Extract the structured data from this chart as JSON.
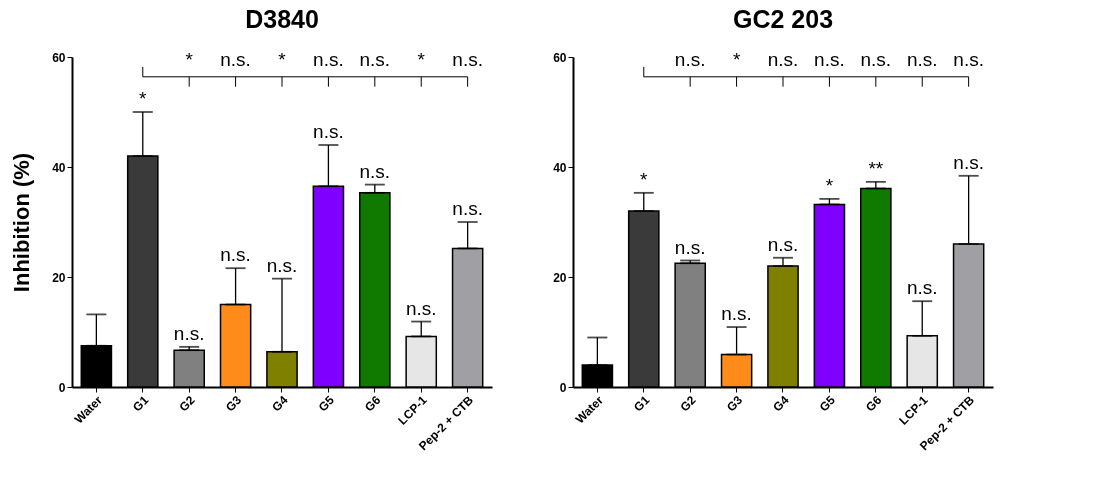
{
  "chart_data": [
    {
      "type": "bar",
      "title": "D3840",
      "ylabel": "Inhibition (%)",
      "categories": [
        "Water",
        "G1",
        "G2",
        "G3",
        "G4",
        "G5",
        "G6",
        "LCP-1",
        "Pep-2 + CTB"
      ],
      "values": [
        7.5,
        42,
        6.7,
        15,
        6.4,
        36.5,
        35.3,
        9.2,
        25.2
      ],
      "errors": [
        [
          7.5,
          13.2
        ],
        [
          42,
          50
        ],
        [
          6.7,
          7.3
        ],
        [
          15,
          21.6
        ],
        [
          6.4,
          19.7
        ],
        [
          36.5,
          44
        ],
        [
          35.3,
          36.8
        ],
        [
          9.2,
          11.9
        ],
        [
          25.2,
          30
        ]
      ],
      "colors": [
        "#000000",
        "#3a3a3a",
        "#808080",
        "#ff8c1a",
        "#7f7f00",
        "#8000ff",
        "#107a00",
        "#e6e6e6",
        "#a0a0a4"
      ],
      "ylim": [
        0,
        60
      ],
      "yticks": [
        0,
        20,
        40,
        60
      ],
      "grid": false,
      "annotations": [
        {
          "text": "*",
          "x": "G1",
          "y": 50.5
        },
        {
          "text": "n.s.",
          "x": "G2",
          "y": 7.8
        },
        {
          "text": "n.s.",
          "x": "G3",
          "y": 22.1
        },
        {
          "text": "n.s.",
          "x": "G4",
          "y": 20.2
        },
        {
          "text": "n.s.",
          "x": "G5",
          "y": 44.5
        },
        {
          "text": "n.s.",
          "x": "G6",
          "y": 37.3
        },
        {
          "text": "n.s.",
          "x": "LCP-1",
          "y": 12.4
        },
        {
          "text": "n.s.",
          "x": "Pep-2 + CTB",
          "y": 30.5
        },
        "*",
        "n.s.",
        "*",
        "n.s.",
        "n.s.",
        "*",
        "n.s."
      ]
    },
    {
      "type": "bar",
      "title": "GC2 203",
      "categories": [
        "Water",
        "G1",
        "G2",
        "G3",
        "G4",
        "G5",
        "G6",
        "LCP-1",
        "Pep-2 + CTB"
      ],
      "values": [
        4.0,
        32.0,
        22.5,
        5.9,
        22.0,
        33.2,
        36.1,
        9.3,
        26.0
      ],
      "errors": [
        [
          4.0,
          9.0
        ],
        [
          32.0,
          35.3
        ],
        [
          22.5,
          23.0
        ],
        [
          5.9,
          10.9
        ],
        [
          22.0,
          23.5
        ],
        [
          33.2,
          34.2
        ],
        [
          36.1,
          37.3
        ],
        [
          9.3,
          15.6
        ],
        [
          26.0,
          38.4
        ]
      ],
      "colors": [
        "#000000",
        "#3a3a3a",
        "#808080",
        "#ff8c1a",
        "#7f7f00",
        "#8000ff",
        "#107a00",
        "#e6e6e6",
        "#a0a0a4"
      ],
      "ylim": [
        0,
        60
      ],
      "yticks": [
        0,
        20,
        40,
        60
      ],
      "grid": false,
      "annotations": [
        {
          "text": "*",
          "x": "G1",
          "y": 35.8
        },
        {
          "text": "n.s.",
          "x": "G2",
          "y": 23.5
        },
        {
          "text": "n.s.",
          "x": "G3",
          "y": 11.4
        },
        {
          "text": "n.s.",
          "x": "G4",
          "y": 24.0
        },
        {
          "text": "*",
          "x": "G5",
          "y": 34.7
        },
        {
          "text": "**",
          "x": "G6",
          "y": 37.8
        },
        {
          "text": "n.s.",
          "x": "LCP-1",
          "y": 16.1
        },
        {
          "text": "n.s.",
          "x": "Pep-2 + CTB",
          "y": 38.9
        },
        "n.s.",
        "*",
        "n.s.",
        "n.s.",
        "n.s.",
        "n.s.",
        "n.s."
      ]
    }
  ]
}
